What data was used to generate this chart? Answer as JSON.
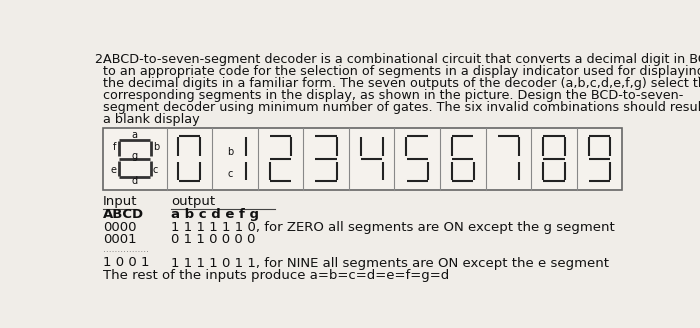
{
  "title_num": "2.",
  "paragraph": "ABCD-to-seven-segment decoder is a combinational circuit that converts a decimal digit in BCD\nto an appropriate code for the selection of segments in a display indicator used for displaying\nthe decimal digits in a familiar form. The seven outputs of the decoder (a,b,c,d,e,f,g) select the\ncorresponding segments in the display, as shown in the picture. Design the BCD-to-seven-\nsegment decoder using minimum number of gates. The six invalid combinations should result in\na blank display",
  "table_header_input": "Input",
  "table_header_output": "output",
  "table_col1": "ABCD",
  "table_col2": "a b c d e f g",
  "row1_input": "0000",
  "row1_output": "1 1 1 1 1 1 0, for ZERO all segments are ON except the g segment",
  "row2_input": "0001",
  "row2_output": "0 1 1 0 0 0 0",
  "dots": "................",
  "row3_input": "1 0 0 1",
  "row3_output": "1 1 1 1 0 1 1, for NINE all segments are ON except the e segment",
  "row4": "The rest of the inputs produce a=b=c=d=e=f=g=d",
  "bg_color": "#f0ede8",
  "seg_color": "#222222",
  "font_size_text": 9.2,
  "font_size_table": 9.5,
  "digit_segments": {
    "0": [
      1,
      1,
      1,
      1,
      1,
      1,
      0
    ],
    "1": [
      0,
      1,
      1,
      0,
      0,
      0,
      0
    ],
    "2": [
      1,
      1,
      0,
      1,
      1,
      0,
      1
    ],
    "3": [
      1,
      1,
      1,
      1,
      0,
      0,
      1
    ],
    "4": [
      0,
      1,
      1,
      0,
      0,
      1,
      1
    ],
    "5": [
      1,
      0,
      1,
      1,
      0,
      1,
      1
    ],
    "6": [
      1,
      0,
      1,
      1,
      1,
      1,
      1
    ],
    "7": [
      1,
      1,
      1,
      0,
      0,
      0,
      0
    ],
    "8": [
      1,
      1,
      1,
      1,
      1,
      1,
      1
    ],
    "9": [
      1,
      1,
      1,
      1,
      0,
      1,
      1
    ]
  }
}
